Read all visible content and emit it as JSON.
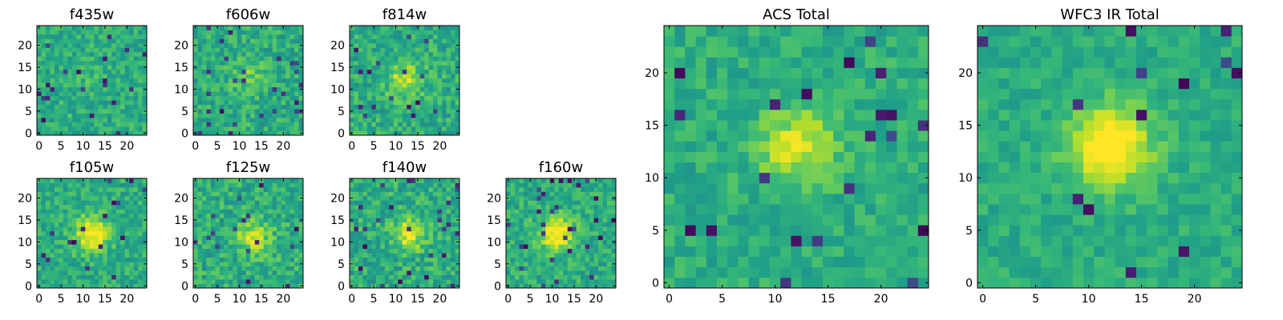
{
  "chart_data": [
    {
      "type": "heatmap",
      "title": "f435w",
      "x_ticks": [
        "0",
        "5",
        "10",
        "15",
        "20"
      ],
      "y_ticks": [
        "0",
        "5",
        "10",
        "15",
        "20"
      ],
      "xlim": [
        -0.5,
        24.5
      ],
      "ylim": [
        -0.5,
        24.5
      ],
      "grid_size": 25,
      "colormap": "viridis",
      "peak_center": [
        12,
        12
      ],
      "peak_strength": 0.05,
      "noise_level": 0.12,
      "dark_fraction": 0.04
    },
    {
      "type": "heatmap",
      "title": "f606w",
      "x_ticks": [
        "0",
        "5",
        "10",
        "15",
        "20"
      ],
      "y_ticks": [
        "0",
        "5",
        "10",
        "15",
        "20"
      ],
      "xlim": [
        -0.5,
        24.5
      ],
      "ylim": [
        -0.5,
        24.5
      ],
      "grid_size": 25,
      "colormap": "viridis",
      "peak_center": [
        12,
        13
      ],
      "peak_strength": 0.15,
      "noise_level": 0.13,
      "dark_fraction": 0.04
    },
    {
      "type": "heatmap",
      "title": "f814w",
      "x_ticks": [
        "0",
        "5",
        "10",
        "15",
        "20"
      ],
      "y_ticks": [
        "0",
        "5",
        "10",
        "15",
        "20"
      ],
      "xlim": [
        -0.5,
        24.5
      ],
      "ylim": [
        -0.5,
        24.5
      ],
      "grid_size": 25,
      "colormap": "viridis",
      "peak_center": [
        12,
        12
      ],
      "peak_strength": 0.3,
      "noise_level": 0.13,
      "dark_fraction": 0.03
    },
    {
      "type": "heatmap",
      "title": "f105w",
      "x_ticks": [
        "0",
        "5",
        "10",
        "15",
        "20"
      ],
      "y_ticks": [
        "0",
        "5",
        "10",
        "15",
        "20"
      ],
      "xlim": [
        -0.5,
        24.5
      ],
      "ylim": [
        -0.5,
        24.5
      ],
      "grid_size": 25,
      "colormap": "viridis",
      "peak_center": [
        12,
        12
      ],
      "peak_strength": 0.45,
      "noise_level": 0.12,
      "dark_fraction": 0.03
    },
    {
      "type": "heatmap",
      "title": "f125w",
      "x_ticks": [
        "0",
        "5",
        "10",
        "15",
        "20"
      ],
      "y_ticks": [
        "0",
        "5",
        "10",
        "15",
        "20"
      ],
      "xlim": [
        -0.5,
        24.5
      ],
      "ylim": [
        -0.5,
        24.5
      ],
      "grid_size": 25,
      "colormap": "viridis",
      "peak_center": [
        13,
        11
      ],
      "peak_strength": 0.3,
      "noise_level": 0.14,
      "dark_fraction": 0.03
    },
    {
      "type": "heatmap",
      "title": "f140w",
      "x_ticks": [
        "0",
        "5",
        "10",
        "15",
        "20"
      ],
      "y_ticks": [
        "0",
        "5",
        "10",
        "15",
        "20"
      ],
      "xlim": [
        -0.5,
        24.5
      ],
      "ylim": [
        -0.5,
        24.5
      ],
      "grid_size": 25,
      "colormap": "viridis",
      "peak_center": [
        13,
        12
      ],
      "peak_strength": 0.35,
      "noise_level": 0.14,
      "dark_fraction": 0.04
    },
    {
      "type": "heatmap",
      "title": "f160w",
      "x_ticks": [
        "0",
        "5",
        "10",
        "15",
        "20"
      ],
      "y_ticks": [
        "0",
        "5",
        "10",
        "15",
        "20"
      ],
      "xlim": [
        -0.5,
        24.5
      ],
      "ylim": [
        -0.5,
        24.5
      ],
      "grid_size": 25,
      "colormap": "viridis",
      "peak_center": [
        11,
        12
      ],
      "peak_strength": 0.45,
      "noise_level": 0.12,
      "dark_fraction": 0.04
    },
    {
      "type": "heatmap",
      "title": "ACS Total",
      "x_ticks": [
        "0",
        "5",
        "10",
        "15",
        "20"
      ],
      "y_ticks": [
        "0",
        "5",
        "10",
        "15",
        "20"
      ],
      "xlim": [
        -0.5,
        24.5
      ],
      "ylim": [
        -0.5,
        24.5
      ],
      "grid_size": 25,
      "colormap": "viridis",
      "peak_center": [
        12,
        13
      ],
      "peak_strength": 0.3,
      "noise_level": 0.1,
      "dark_fraction": 0.03
    },
    {
      "type": "heatmap",
      "title": "WFC3 IR Total",
      "x_ticks": [
        "0",
        "5",
        "10",
        "15",
        "20"
      ],
      "y_ticks": [
        "0",
        "5",
        "10",
        "15",
        "20"
      ],
      "xlim": [
        -0.5,
        24.5
      ],
      "ylim": [
        -0.5,
        24.5
      ],
      "grid_size": 25,
      "colormap": "viridis",
      "peak_center": [
        12,
        13
      ],
      "peak_strength": 0.5,
      "noise_level": 0.08,
      "dark_fraction": 0.02
    }
  ]
}
